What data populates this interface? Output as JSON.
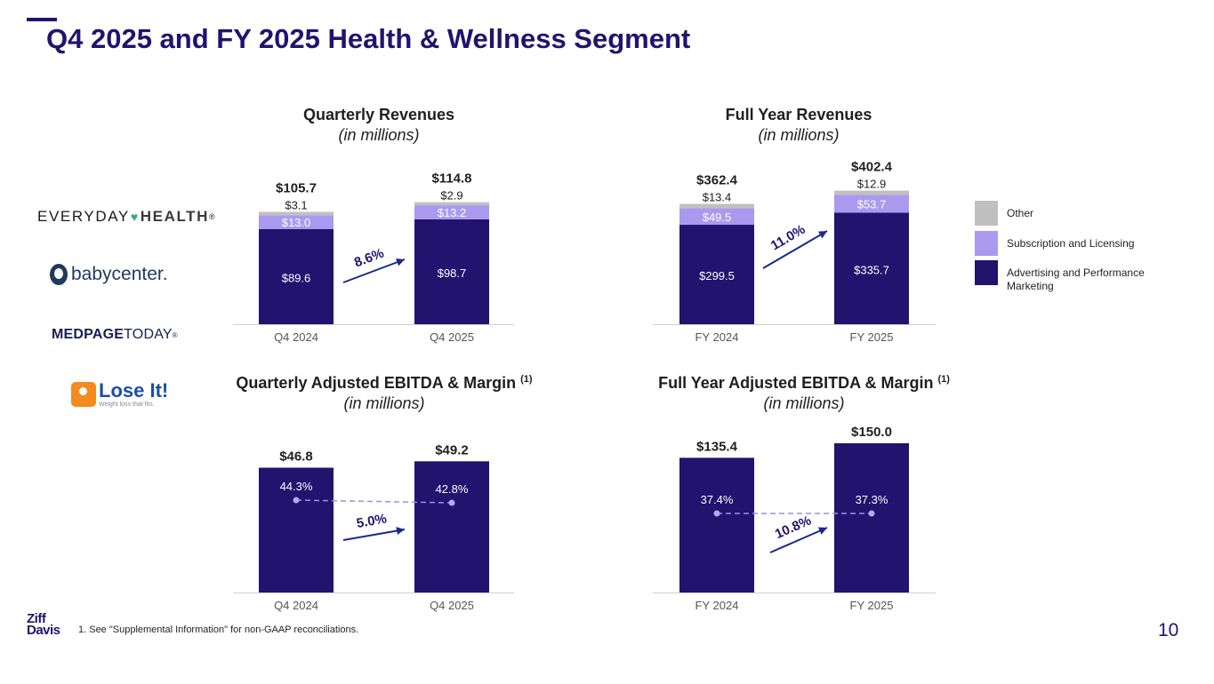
{
  "page": {
    "title": "Q4 2025 and FY 2025 Health & Wellness Segment",
    "page_number": "10"
  },
  "colors": {
    "navy": "#22136e",
    "lavender": "#a99af0",
    "gray": "#c0c0c0",
    "text": "#1f1f1f",
    "growth_arrow": "#1a2a8a"
  },
  "brands": {
    "everyday_a": "EVERYDAY",
    "everyday_b": "HEALTH",
    "everyday_tm": "®",
    "babycenter": "babycenter.",
    "medpage_a": "MEDPAGE",
    "medpage_b": "TODAY",
    "medpage_tm": "®",
    "loseit_name": "Lose It!",
    "loseit_tag": "Weight loss that fits."
  },
  "legend": [
    {
      "label": "Other",
      "color": "#c0c0c0"
    },
    {
      "label": "Subscription and Licensing",
      "color": "#a99af0"
    },
    {
      "label": "Advertising and Performance Marketing",
      "color": "#22136e"
    }
  ],
  "footer": {
    "logo_top": "Ziff",
    "logo_bottom": "Davis",
    "footnote": "1.   See \"Supplemental Information\" for non-GAAP reconciliations."
  },
  "chart_titles": {
    "q_rev": {
      "main": "Quarterly Revenues",
      "sub": "(in millions)"
    },
    "fy_rev": {
      "main": "Full Year Revenues",
      "sub": "(in millions)"
    },
    "q_ebitda": {
      "main": "Quarterly Adjusted EBITDA & Margin ",
      "sup": "(1)",
      "sub": "(in millions)"
    },
    "fy_ebitda": {
      "main": "Full Year Adjusted EBITDA & Margin ",
      "sup": "(1)",
      "sub": "(in millions)"
    }
  },
  "chart_data": [
    {
      "id": "quarterly-revenues",
      "type": "bar",
      "stacked": true,
      "title": "Quarterly Revenues",
      "subtitle": "(in millions)",
      "categories": [
        "Q4 2024",
        "Q4 2025"
      ],
      "series": [
        {
          "name": "Advertising and Performance Marketing",
          "values": [
            89.6,
            98.7
          ],
          "labels": [
            "$89.6",
            "$98.7"
          ],
          "color": "#22136e"
        },
        {
          "name": "Subscription and Licensing",
          "values": [
            13.0,
            13.2
          ],
          "labels": [
            "$13.0",
            "$13.2"
          ],
          "color": "#a99af0"
        },
        {
          "name": "Other",
          "values": [
            3.1,
            2.9
          ],
          "labels": [
            "$3.1",
            "$2.9"
          ],
          "color": "#c0c0c0"
        }
      ],
      "totals": [
        105.7,
        114.8
      ],
      "total_labels": [
        "$105.7",
        "$114.8"
      ],
      "growth": "8.6%",
      "ylim": [
        0,
        122
      ]
    },
    {
      "id": "full-year-revenues",
      "type": "bar",
      "stacked": true,
      "title": "Full Year Revenues",
      "subtitle": "(in millions)",
      "categories": [
        "FY 2024",
        "FY 2025"
      ],
      "series": [
        {
          "name": "Advertising and Performance Marketing",
          "values": [
            299.5,
            335.7
          ],
          "labels": [
            "$299.5",
            "$335.7"
          ],
          "color": "#22136e"
        },
        {
          "name": "Subscription and Licensing",
          "values": [
            49.5,
            53.7
          ],
          "labels": [
            "$49.5",
            "$53.7"
          ],
          "color": "#a99af0"
        },
        {
          "name": "Other",
          "values": [
            13.4,
            12.9
          ],
          "labels": [
            "$13.4",
            "$12.9"
          ],
          "color": "#c0c0c0"
        }
      ],
      "totals": [
        362.4,
        402.4
      ],
      "total_labels": [
        "$362.4",
        "$402.4"
      ],
      "growth": "11.0%",
      "ylim": [
        0,
        428
      ]
    },
    {
      "id": "quarterly-adjusted-ebitda",
      "type": "bar",
      "title": "Quarterly Adjusted EBITDA & Margin (1)",
      "subtitle": "(in millions)",
      "categories": [
        "Q4 2024",
        "Q4 2025"
      ],
      "values": [
        46.8,
        49.2
      ],
      "value_labels": [
        "$46.8",
        "$49.2"
      ],
      "margin": [
        44.3,
        42.8
      ],
      "margin_labels": [
        "44.3%",
        "42.8%"
      ],
      "growth": "5.0%",
      "ylim": [
        0,
        52.3
      ]
    },
    {
      "id": "full-year-adjusted-ebitda",
      "type": "bar",
      "title": "Full Year Adjusted EBITDA & Margin (1)",
      "subtitle": "(in millions)",
      "categories": [
        "FY 2024",
        "FY 2025"
      ],
      "values": [
        135.4,
        150.0
      ],
      "value_labels": [
        "$135.4",
        "$150.0"
      ],
      "margin": [
        37.4,
        37.3
      ],
      "margin_labels": [
        "37.4%",
        "37.3%"
      ],
      "growth": "10.8%",
      "ylim": [
        0,
        150.0
      ]
    }
  ]
}
